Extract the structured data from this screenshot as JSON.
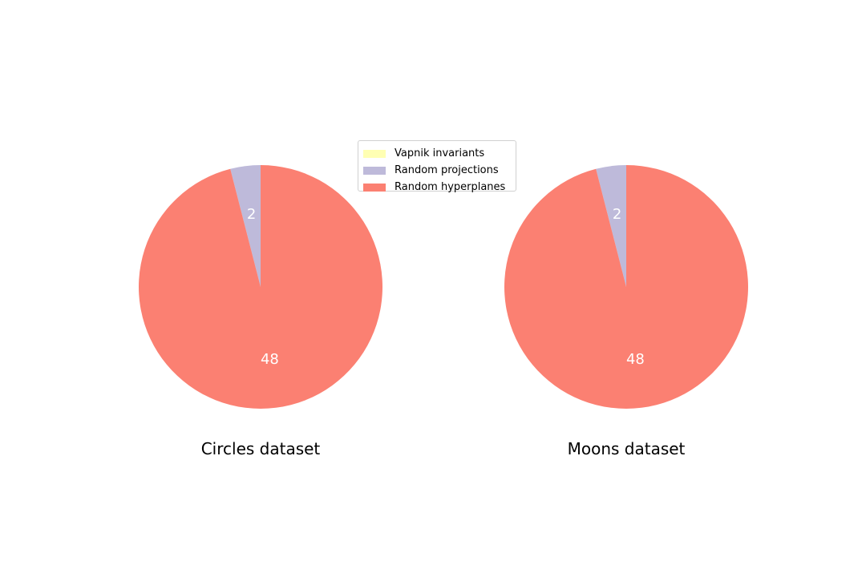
{
  "colors": {
    "vapnik": "#ffffb3",
    "projections": "#bebada",
    "hyperplanes": "#fb8072",
    "label_text": "#ffffff",
    "title_text": "#000000"
  },
  "legend": {
    "items": [
      {
        "label": "Vapnik invariants",
        "color": "#ffffb3"
      },
      {
        "label": "Random projections",
        "color": "#bebada"
      },
      {
        "label": "Random hyperplanes",
        "color": "#fb8072"
      }
    ]
  },
  "chart_data": [
    {
      "type": "pie",
      "title": "Circles dataset",
      "categories": [
        "Vapnik invariants",
        "Random projections",
        "Random hyperplanes"
      ],
      "values": [
        0,
        2,
        48
      ],
      "labels": [
        "",
        "2",
        "48"
      ],
      "start_angle": "90 degrees, counter-clockwise"
    },
    {
      "type": "pie",
      "title": "Moons dataset",
      "categories": [
        "Vapnik invariants",
        "Random projections",
        "Random hyperplanes"
      ],
      "values": [
        0,
        2,
        48
      ],
      "labels": [
        "",
        "2",
        "48"
      ],
      "start_angle": "90 degrees, counter-clockwise"
    }
  ]
}
